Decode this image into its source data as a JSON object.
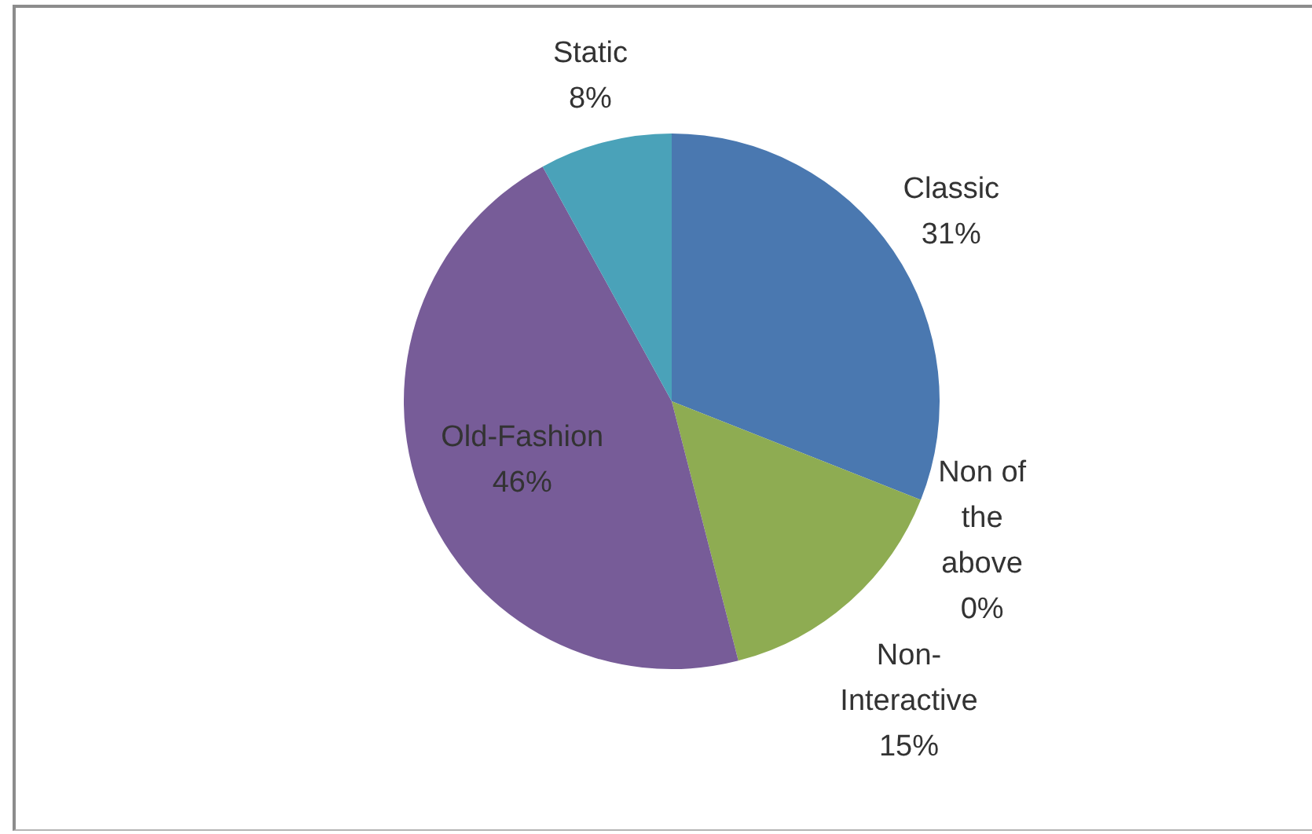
{
  "chart_data": {
    "type": "pie",
    "categories": [
      "Classic",
      "Non of the above",
      "Non-Interactive",
      "Old-Fashion",
      "Static"
    ],
    "values": [
      31,
      0,
      15,
      46,
      8
    ],
    "value_labels": [
      "31%",
      "0%",
      "15%",
      "46%",
      "8%"
    ],
    "colors": [
      "#4a78b0",
      "#c0504d",
      "#8eac52",
      "#775c98",
      "#4aa2b9"
    ]
  }
}
